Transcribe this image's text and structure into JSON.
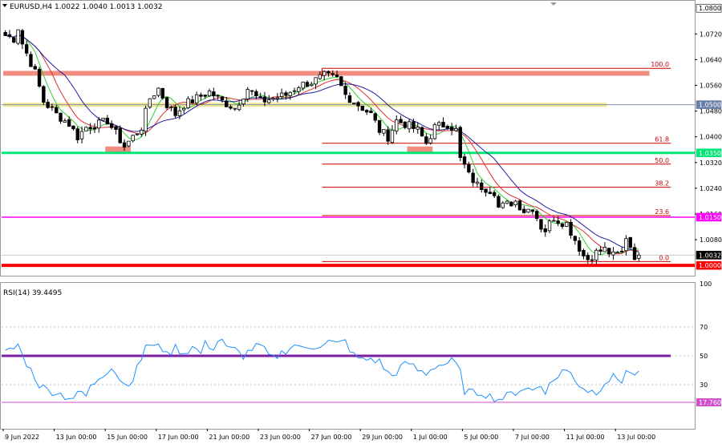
{
  "header": {
    "symbol_info": "EURUSD,H4  1.0022 1.0040 1.0013 1.0032",
    "menu_icon": "triangle-down-icon"
  },
  "colors": {
    "candle_up": "#ffffff",
    "candle_down": "#000000",
    "ma_fast": "#32cd32",
    "ma_mid": "#e03030",
    "ma_slow": "#1e1e9e",
    "rsi_line": "#1e90ff",
    "rsi_level50": "#7b1fa2",
    "rsi_level17": "#d050d0",
    "zone_salmon": "#f08070",
    "zone_yellow": "#f0e68c",
    "level_green": "#00e676",
    "level_magenta": "#ff00ff",
    "level_red": "#ff0000",
    "fib_line": "#cc0000",
    "grid": "#c0c0c0"
  },
  "chart_data": [
    {
      "type": "candlestick",
      "title": "EURUSD,H4",
      "ohlc_last": {
        "open": 1.0022,
        "high": 1.004,
        "low": 1.0013,
        "close": 1.0032
      },
      "ylim": [
        0.9973,
        1.0818
      ],
      "y_ticks": [
        "1.0720",
        "1.0640",
        "1.0560",
        "1.0480",
        "1.0400",
        "1.0320",
        "1.0240",
        "1.0160",
        "1.0080"
      ],
      "price_tags": [
        {
          "label": "1.0800",
          "value": 1.08,
          "bg": "#ffffff",
          "fg": "#000000"
        },
        {
          "label": "1.0500",
          "value": 1.05,
          "bg": "#6a7fa8",
          "fg": "#ffffff"
        },
        {
          "label": "1.0350",
          "value": 1.035,
          "bg": "#00e676",
          "fg": "#ffffff"
        },
        {
          "label": "1.0150",
          "value": 1.015,
          "bg": "#ff00ff",
          "fg": "#ffffff"
        },
        {
          "label": "1.0032",
          "value": 1.0032,
          "bg": "#000000",
          "fg": "#ffffff"
        },
        {
          "label": "1.0000",
          "value": 1.0,
          "bg": "#ff0000",
          "fg": "#ffffff"
        }
      ],
      "horizontal_levels": [
        {
          "value": 1.035,
          "color": "#00e676",
          "width": 3
        },
        {
          "value": 1.015,
          "color": "#ff00ff",
          "width": 1.5
        },
        {
          "value": 1.0,
          "color": "#ff0000",
          "width": 4
        },
        {
          "value": 1.05,
          "color": "#8090b0",
          "width": 1
        }
      ],
      "zones": [
        {
          "from": 1.059,
          "to": 1.0605,
          "color": "#f08070",
          "start_bar": 0,
          "end_bar": 152
        },
        {
          "from": 1.0493,
          "to": 1.0506,
          "color": "#f0e68c",
          "start_bar": 0,
          "end_bar": 142
        },
        {
          "from": 1.0352,
          "to": 1.037,
          "color": "#f08070",
          "start_bar": 24,
          "end_bar": 30
        },
        {
          "from": 1.0352,
          "to": 1.037,
          "color": "#f08070",
          "start_bar": 95,
          "end_bar": 101
        }
      ],
      "fibonacci": [
        {
          "label": "100.0",
          "value": 1.0613
        },
        {
          "label": "61.8",
          "value": 1.038
        },
        {
          "label": "50.0",
          "value": 1.0315
        },
        {
          "label": "38.2",
          "value": 1.0243
        },
        {
          "label": "23.6",
          "value": 1.0155
        },
        {
          "label": "0.0",
          "value": 1.0012
        }
      ],
      "fib_start_bar": 75,
      "fib_end_bar": 157,
      "moving_averages": [
        "fast",
        "mid",
        "slow"
      ],
      "x_ticks": [
        {
          "bar": 0,
          "label": "9 Jun 2022"
        },
        {
          "bar": 12,
          "label": "13 Jun 00:00"
        },
        {
          "bar": 24,
          "label": "15 Jun 00:00"
        },
        {
          "bar": 36,
          "label": "17 Jun 00:00"
        },
        {
          "bar": 48,
          "label": "21 Jun 00:00"
        },
        {
          "bar": 60,
          "label": "23 Jun 00:00"
        },
        {
          "bar": 72,
          "label": "27 Jun 00:00"
        },
        {
          "bar": 84,
          "label": "29 Jun 00:00"
        },
        {
          "bar": 96,
          "label": "1 Jul 00:00"
        },
        {
          "bar": 108,
          "label": "5 Jul 00:00"
        },
        {
          "bar": 120,
          "label": "7 Jul 00:00"
        },
        {
          "bar": 132,
          "label": "11 Jul 00:00"
        },
        {
          "bar": 144,
          "label": "13 Jul 00:00"
        }
      ],
      "close_path": [
        [
          0,
          1.0715
        ],
        [
          2,
          1.0705
        ],
        [
          3,
          1.074
        ],
        [
          4,
          1.069
        ],
        [
          5,
          1.066
        ],
        [
          7,
          1.06
        ],
        [
          9,
          1.051
        ],
        [
          12,
          1.047
        ],
        [
          15,
          1.044
        ],
        [
          17,
          1.04
        ],
        [
          19,
          1.043
        ],
        [
          22,
          1.044
        ],
        [
          24,
          1.045
        ],
        [
          26,
          1.041
        ],
        [
          28,
          1.037
        ],
        [
          30,
          1.04
        ],
        [
          32,
          1.043
        ],
        [
          34,
          1.052
        ],
        [
          36,
          1.055
        ],
        [
          38,
          1.05
        ],
        [
          40,
          1.047
        ],
        [
          42,
          1.05
        ],
        [
          45,
          1.052
        ],
        [
          48,
          1.054
        ],
        [
          51,
          1.051
        ],
        [
          54,
          1.049
        ],
        [
          57,
          1.055
        ],
        [
          60,
          1.051
        ],
        [
          63,
          1.052
        ],
        [
          66,
          1.053
        ],
        [
          69,
          1.056
        ],
        [
          72,
          1.057
        ],
        [
          75,
          1.059
        ],
        [
          78,
          1.058
        ],
        [
          80,
          1.053
        ],
        [
          83,
          1.05
        ],
        [
          86,
          1.047
        ],
        [
          88,
          1.042
        ],
        [
          90,
          1.04
        ],
        [
          92,
          1.045
        ],
        [
          94,
          1.044
        ],
        [
          97,
          1.042
        ],
        [
          99,
          1.038
        ],
        [
          101,
          1.043
        ],
        [
          104,
          1.044
        ],
        [
          106,
          1.042
        ],
        [
          107,
          1.033
        ],
        [
          108,
          1.031
        ],
        [
          109,
          1.028
        ],
        [
          111,
          1.025
        ],
        [
          113,
          1.024
        ],
        [
          115,
          1.023
        ],
        [
          116,
          1.018
        ],
        [
          118,
          1.019
        ],
        [
          120,
          1.02
        ],
        [
          122,
          1.017
        ],
        [
          124,
          1.018
        ],
        [
          126,
          1.012
        ],
        [
          127,
          1.011
        ],
        [
          129,
          1.015
        ],
        [
          130,
          1.014
        ],
        [
          132,
          1.013
        ],
        [
          134,
          1.008
        ],
        [
          136,
          1.003
        ],
        [
          137,
          1.002
        ],
        [
          139,
          1.004
        ],
        [
          141,
          1.005
        ],
        [
          143,
          1.003
        ],
        [
          145,
          1.004
        ],
        [
          146,
          1.009
        ],
        [
          147,
          1.006
        ],
        [
          148,
          1.003
        ],
        [
          149,
          1.0032
        ]
      ],
      "bar_count": 150
    },
    {
      "type": "line",
      "title": "RSI(14) 39.4495",
      "ylim": [
        0,
        100
      ],
      "y_ticks": [
        "100",
        "70",
        "50",
        "30"
      ],
      "levels": [
        {
          "value": 50,
          "color": "#7b1fa2",
          "width": 3
        },
        {
          "value": 17.76,
          "label": "17.760",
          "color": "#d050d0",
          "width": 1
        }
      ],
      "dotted_levels": [
        70,
        50,
        30
      ],
      "series": [
        {
          "values": [
            [
              0,
              52
            ],
            [
              2,
              55
            ],
            [
              3,
              58
            ],
            [
              4,
              50
            ],
            [
              6,
              40
            ],
            [
              8,
              30
            ],
            [
              10,
              26
            ],
            [
              12,
              25
            ],
            [
              14,
              22
            ],
            [
              16,
              21
            ],
            [
              18,
              25
            ],
            [
              19,
              22
            ],
            [
              20,
              28
            ],
            [
              22,
              35
            ],
            [
              24,
              40
            ],
            [
              25,
              43
            ],
            [
              26,
              38
            ],
            [
              28,
              30
            ],
            [
              30,
              34
            ],
            [
              32,
              48
            ],
            [
              33,
              58
            ],
            [
              35,
              55
            ],
            [
              36,
              60
            ],
            [
              38,
              50
            ],
            [
              40,
              56
            ],
            [
              42,
              52
            ],
            [
              44,
              56
            ],
            [
              46,
              52
            ],
            [
              47,
              58
            ],
            [
              49,
              56
            ],
            [
              50,
              60
            ],
            [
              51,
              62
            ],
            [
              52,
              55
            ],
            [
              54,
              54
            ],
            [
              56,
              50
            ],
            [
              58,
              55
            ],
            [
              60,
              57
            ],
            [
              62,
              50
            ],
            [
              63,
              48
            ],
            [
              65,
              52
            ],
            [
              67,
              56
            ],
            [
              69,
              58
            ],
            [
              70,
              54
            ],
            [
              72,
              56
            ],
            [
              74,
              58
            ],
            [
              76,
              60
            ],
            [
              78,
              58
            ],
            [
              80,
              60
            ],
            [
              82,
              50
            ],
            [
              84,
              47
            ],
            [
              86,
              48
            ],
            [
              88,
              46
            ],
            [
              90,
              38
            ],
            [
              91,
              36
            ],
            [
              93,
              42
            ],
            [
              95,
              45
            ],
            [
              97,
              40
            ],
            [
              99,
              38
            ],
            [
              101,
              43
            ],
            [
              103,
              44
            ],
            [
              105,
              46
            ],
            [
              106,
              44
            ],
            [
              107,
              38
            ],
            [
              108,
              26
            ],
            [
              110,
              24
            ],
            [
              112,
              25
            ],
            [
              114,
              22
            ],
            [
              116,
              20
            ],
            [
              118,
              22
            ],
            [
              120,
              25
            ],
            [
              122,
              28
            ],
            [
              124,
              26
            ],
            [
              126,
              30
            ],
            [
              127,
              26
            ],
            [
              129,
              33
            ],
            [
              131,
              40
            ],
            [
              133,
              38
            ],
            [
              135,
              30
            ],
            [
              137,
              26
            ],
            [
              139,
              25
            ],
            [
              141,
              32
            ],
            [
              143,
              35
            ],
            [
              145,
              33
            ],
            [
              146,
              40
            ],
            [
              147,
              37
            ],
            [
              148,
              38
            ],
            [
              149,
              39
            ]
          ]
        }
      ],
      "last_value": 39.4495
    }
  ]
}
